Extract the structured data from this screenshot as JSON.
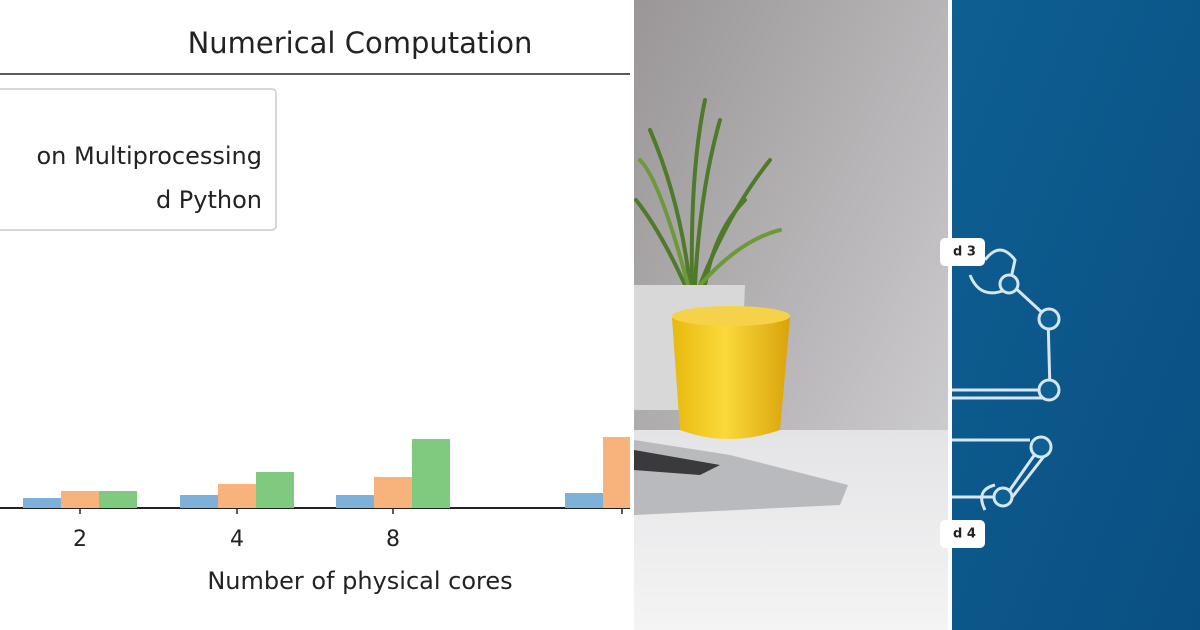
{
  "chart_data": {
    "type": "bar",
    "title": "Numerical Computation",
    "x_label": "Number of physical cores",
    "categories": [
      "2",
      "4",
      "8",
      null
    ],
    "series": [
      {
        "color": "#7fb0da",
        "values": [
          10,
          13,
          13,
          15
        ]
      },
      {
        "name": "on Multiprocessing",
        "color": "#f8b27c",
        "values": [
          17,
          24,
          31,
          71
        ]
      },
      {
        "name": "d Python",
        "color": "#7fca7f",
        "values": [
          17,
          36,
          69,
          null
        ]
      }
    ],
    "ylim": [
      0,
      434
    ]
  },
  "diagram": {
    "labels": [
      "d 3",
      "d 4"
    ]
  }
}
